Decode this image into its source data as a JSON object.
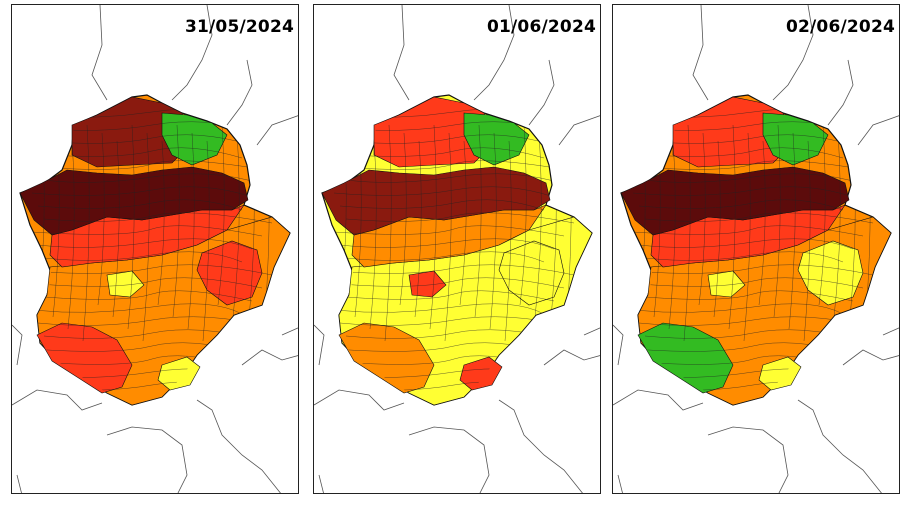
{
  "panels": [
    {
      "date": "31/05/2024",
      "regions": {
        "north": "#8a1a0f",
        "band": "#5c0b0b",
        "central": "#ff3a1a",
        "south": "#ff8c00",
        "southwest": "#ff3a1a",
        "east": "#ff3a1a",
        "northeast": "#33bb22",
        "spots": "#ffff33"
      }
    },
    {
      "date": "01/06/2024",
      "regions": {
        "north": "#ff3a1a",
        "band": "#8a1a0f",
        "central": "#ff8c00",
        "south": "#ffff33",
        "southwest": "#ff8c00",
        "east": "#ffff33",
        "northeast": "#33bb22",
        "spots": "#ff3a1a"
      }
    },
    {
      "date": "02/06/2024",
      "regions": {
        "north": "#ff3a1a",
        "band": "#5c0b0b",
        "central": "#ff3a1a",
        "south": "#ff8c00",
        "southwest": "#33bb22",
        "east": "#ffff33",
        "northeast": "#33bb22",
        "spots": "#ffff33"
      }
    }
  ]
}
